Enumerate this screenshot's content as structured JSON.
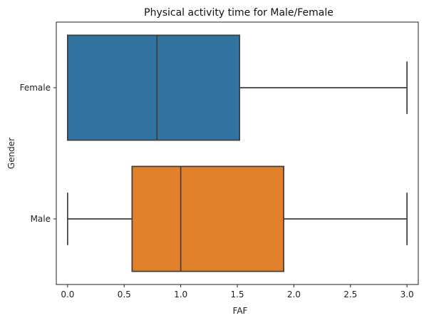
{
  "chart_data": {
    "type": "box",
    "orientation": "horizontal",
    "title": "Physical activity time for Male/Female",
    "xlabel": "FAF",
    "ylabel": "Gender",
    "xlim": [
      -0.1,
      3.1
    ],
    "xticks": [
      0.0,
      0.5,
      1.0,
      1.5,
      2.0,
      2.5,
      3.0
    ],
    "xtick_labels": [
      "0.0",
      "0.5",
      "1.0",
      "1.5",
      "2.0",
      "2.5",
      "3.0"
    ],
    "grid": false,
    "categories": [
      "Female",
      "Male"
    ],
    "boxes": [
      {
        "category": "Female",
        "color": "#3274a1",
        "whisker_low": 0.0,
        "q1": 0.0,
        "median": 0.79,
        "q3": 1.52,
        "whisker_high": 3.0
      },
      {
        "category": "Male",
        "color": "#e1812c",
        "whisker_low": 0.0,
        "q1": 0.57,
        "median": 1.0,
        "q3": 1.91,
        "whisker_high": 3.0
      }
    ]
  }
}
